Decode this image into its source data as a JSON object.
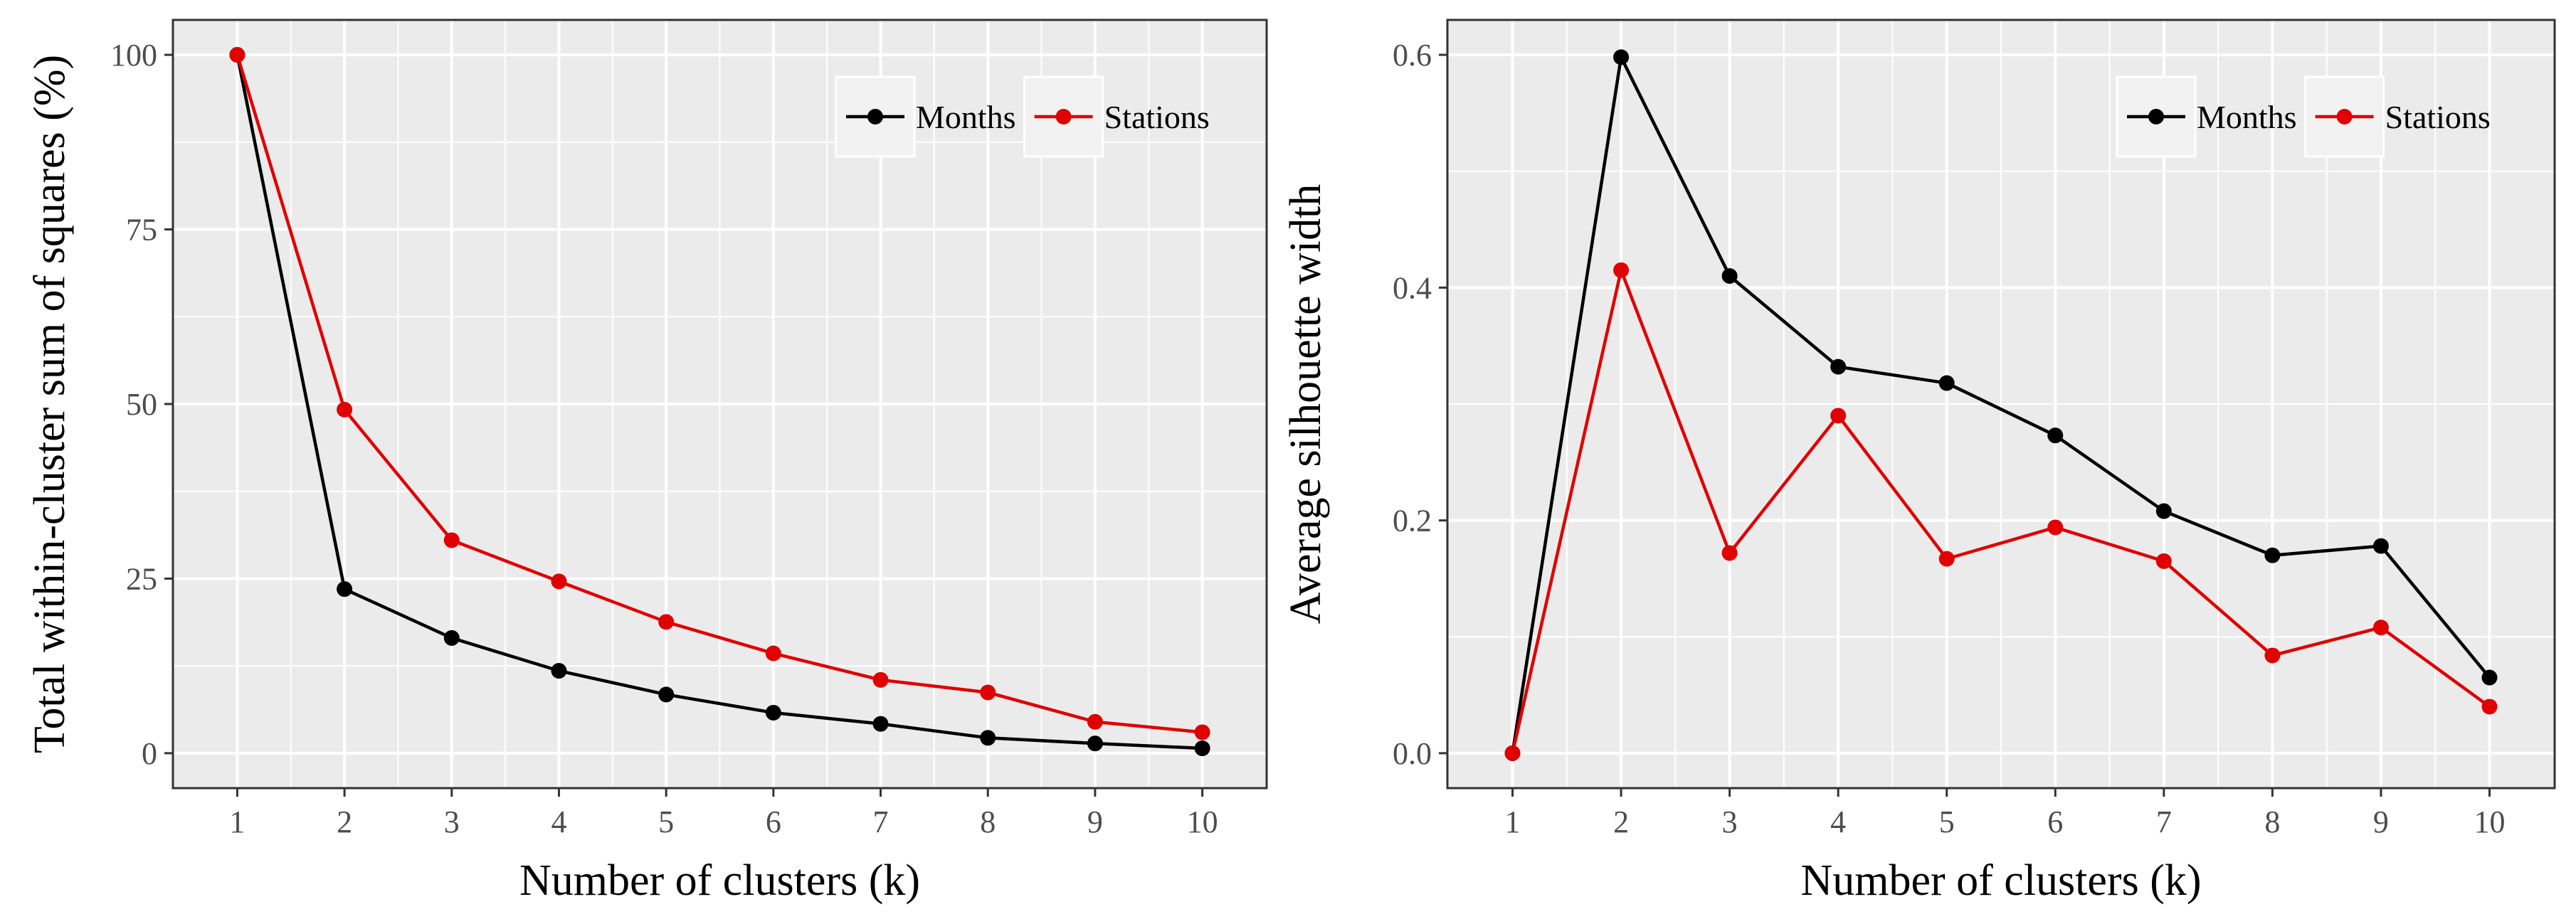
{
  "chart_data": [
    {
      "type": "line",
      "x": [
        1,
        2,
        3,
        4,
        5,
        6,
        7,
        8,
        9,
        10
      ],
      "series": [
        {
          "name": "Months",
          "color": "#000000",
          "values": [
            100,
            23.5,
            16.5,
            11.8,
            8.4,
            5.8,
            4.2,
            2.2,
            1.4,
            0.7
          ]
        },
        {
          "name": "Stations",
          "color": "#e00000",
          "values": [
            100,
            49.2,
            30.5,
            24.6,
            18.8,
            14.3,
            10.5,
            8.7,
            4.5,
            3.0
          ]
        }
      ],
      "xlabel": "Number of clusters (k)",
      "ylabel": "Total within-cluster sum of squares (%)",
      "xticks": [
        1,
        2,
        3,
        4,
        5,
        6,
        7,
        8,
        9,
        10
      ],
      "yticks": [
        0,
        25,
        50,
        75,
        100
      ],
      "ytick_labels": [
        "0",
        "25",
        "50",
        "75",
        "100"
      ],
      "xlim": [
        0.4,
        10.6
      ],
      "ylim": [
        -5,
        105
      ],
      "grid": true,
      "legend": "top-right"
    },
    {
      "type": "line",
      "x": [
        1,
        2,
        3,
        4,
        5,
        6,
        7,
        8,
        9,
        10
      ],
      "series": [
        {
          "name": "Months",
          "color": "#000000",
          "values": [
            0,
            0.598,
            0.41,
            0.332,
            0.318,
            0.273,
            0.208,
            0.17,
            0.178,
            0.065
          ]
        },
        {
          "name": "Stations",
          "color": "#e00000",
          "values": [
            0,
            0.415,
            0.172,
            0.29,
            0.167,
            0.194,
            0.165,
            0.084,
            0.108,
            0.04
          ]
        }
      ],
      "xlabel": "Number of clusters (k)",
      "ylabel": "Average silhouette width",
      "xticks": [
        1,
        2,
        3,
        4,
        5,
        6,
        7,
        8,
        9,
        10
      ],
      "yticks": [
        0,
        0.2,
        0.4,
        0.6
      ],
      "ytick_labels": [
        "0.0",
        "0.2",
        "0.4",
        "0.6"
      ],
      "xlim": [
        0.4,
        10.6
      ],
      "ylim": [
        -0.03,
        0.63
      ],
      "grid": true,
      "legend": "top-right"
    }
  ]
}
